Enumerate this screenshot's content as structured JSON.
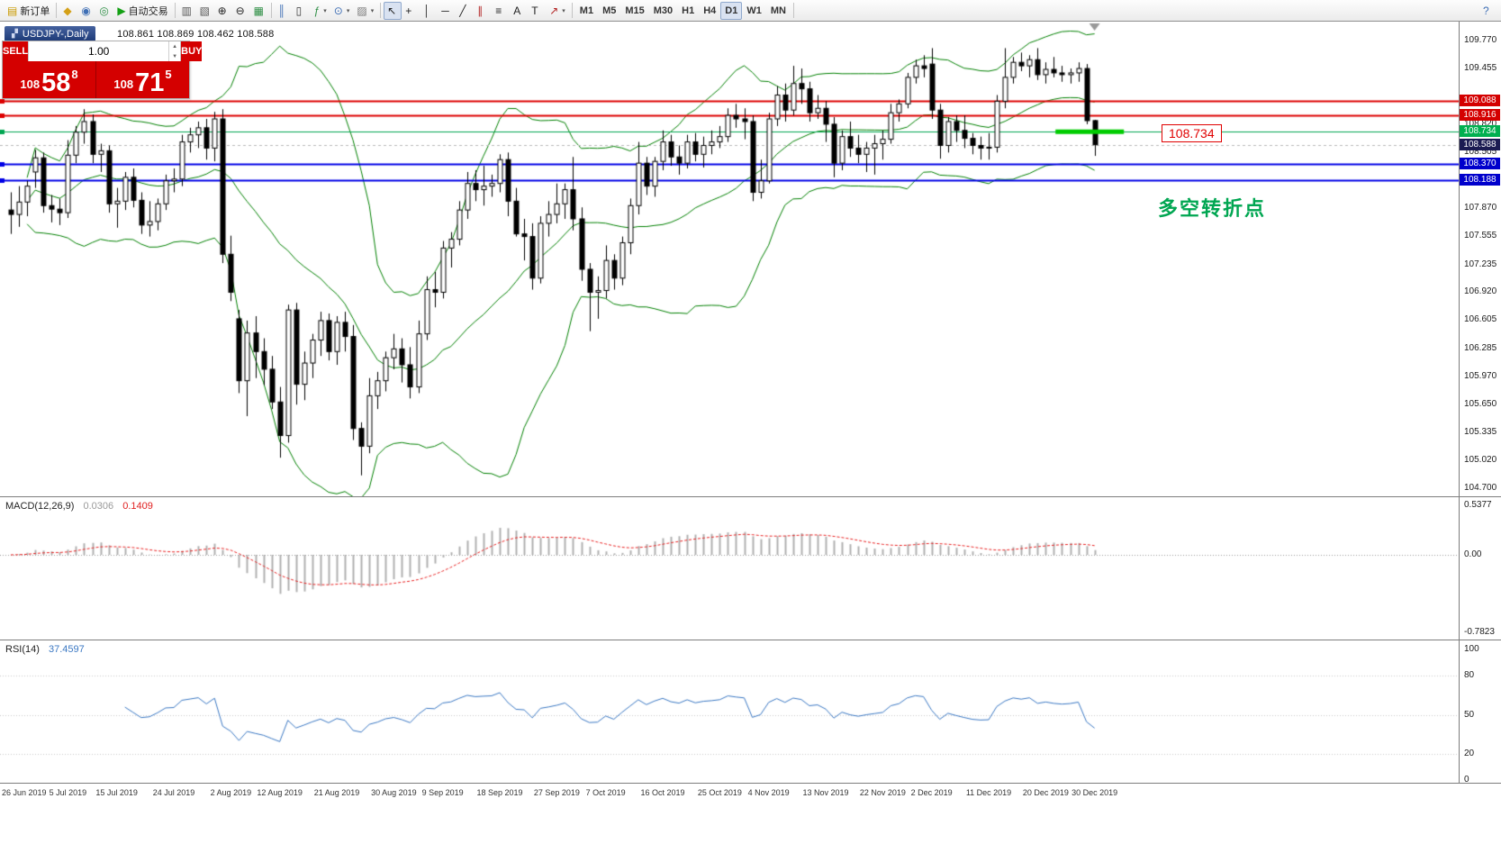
{
  "toolbar": {
    "groups": [
      {
        "items": [
          {
            "name": "new-order-button",
            "glyph": "▤",
            "glyph_color": "#c99a00",
            "label": "新订单"
          }
        ]
      },
      {
        "items": [
          {
            "name": "market-watch-button",
            "glyph": "◆",
            "glyph_color": "#d4a017"
          },
          {
            "name": "navigator-button",
            "glyph": "◉",
            "glyph_color": "#3f6fb5"
          },
          {
            "name": "terminal-button",
            "glyph": "◎",
            "glyph_color": "#2f8f46"
          },
          {
            "name": "autotrading-button",
            "glyph": "▶",
            "glyph_color": "#14a014",
            "label": "自动交易"
          }
        ]
      },
      {
        "items": [
          {
            "name": "bar-chart-zoom-button",
            "glyph": "▥",
            "glyph_color": "#555555"
          },
          {
            "name": "candle-chart-zoom-button",
            "glyph": "▧",
            "glyph_color": "#555555"
          },
          {
            "name": "zoom-in-button",
            "glyph": "⊕",
            "glyph_color": "#222222"
          },
          {
            "name": "zoom-out-button",
            "glyph": "⊖",
            "glyph_color": "#222222"
          },
          {
            "name": "tile-windows-button",
            "glyph": "▦",
            "glyph_color": "#2f8f46"
          }
        ]
      },
      {
        "items": [
          {
            "name": "chart-type-bars-button",
            "glyph": "║",
            "glyph_color": "#3f6fb5"
          },
          {
            "name": "chart-type-candles-button",
            "glyph": "▯",
            "glyph_color": "#333333"
          },
          {
            "name": "indicators-button",
            "glyph": "ƒ",
            "glyph_color": "#2f8f46",
            "dropdown": true
          },
          {
            "name": "periods-menu-button",
            "glyph": "⊙",
            "glyph_color": "#3f6fb5",
            "dropdown": true
          },
          {
            "name": "templates-button",
            "glyph": "▨",
            "glyph_color": "#777777",
            "dropdown": true
          }
        ]
      },
      {
        "items": [
          {
            "name": "cursor-button",
            "glyph": "↖",
            "glyph_color": "#222222",
            "active": true
          },
          {
            "name": "crosshair-button",
            "glyph": "+",
            "glyph_color": "#222222"
          },
          {
            "name": "vertical-line-button",
            "glyph": "│",
            "glyph_color": "#222222"
          },
          {
            "name": "horizontal-line-button",
            "glyph": "─",
            "glyph_color": "#222222"
          },
          {
            "name": "trendline-button",
            "glyph": "╱",
            "glyph_color": "#222222"
          },
          {
            "name": "channel-button",
            "glyph": "∥",
            "glyph_color": "#b22222"
          },
          {
            "name": "fibonacci-button",
            "glyph": "≡",
            "glyph_color": "#222222"
          },
          {
            "name": "text-button",
            "glyph": "A",
            "glyph_color": "#222222"
          },
          {
            "name": "text-label-button",
            "glyph": "T",
            "glyph_color": "#222222"
          },
          {
            "name": "arrow-objects-button",
            "glyph": "↗",
            "glyph_color": "#b22222",
            "dropdown": true
          }
        ]
      },
      {
        "items": [
          {
            "name": "timeframe-m1-button",
            "label": "M1",
            "tf": true
          },
          {
            "name": "timeframe-m5-button",
            "label": "M5",
            "tf": true
          },
          {
            "name": "timeframe-m15-button",
            "label": "M15",
            "tf": true
          },
          {
            "name": "timeframe-m30-button",
            "label": "M30",
            "tf": true
          },
          {
            "name": "timeframe-h1-button",
            "label": "H1",
            "tf": true
          },
          {
            "name": "timeframe-h4-button",
            "label": "H4",
            "tf": true
          },
          {
            "name": "timeframe-d1-button",
            "label": "D1",
            "tf": true,
            "active": true
          },
          {
            "name": "timeframe-w1-button",
            "label": "W1",
            "tf": true
          },
          {
            "name": "timeframe-mn-button",
            "label": "MN",
            "tf": true
          }
        ]
      },
      {
        "items": [
          {
            "name": "help-button",
            "glyph": "?",
            "glyph_color": "#3f6fb5",
            "right": true
          }
        ]
      }
    ]
  },
  "chart_header": {
    "symbol_period": "USDJPY-,Daily",
    "ohlc": "108.861 108.869 108.462 108.588"
  },
  "trade_panel": {
    "sell_label": "SELL",
    "buy_label": "BUY",
    "volume": "1.00",
    "sell_price": {
      "small": "108",
      "big": "58",
      "sup": "8"
    },
    "buy_price": {
      "small": "108",
      "big": "71",
      "sup": "5"
    }
  },
  "annotations": {
    "price_box": "108.734",
    "price_box_color": "#e00000",
    "turning_point": "多空转折点",
    "turning_point_color": "#00a651"
  },
  "price_axis": {
    "labels": [
      "109.770",
      "109.455",
      "108.820",
      "108.505",
      "107.870",
      "107.555",
      "107.235",
      "106.920",
      "106.605",
      "106.285",
      "105.970",
      "105.650",
      "105.335",
      "105.020",
      "104.700"
    ]
  },
  "indicators": {
    "macd": {
      "title": "MACD(12,26,9)",
      "value_main": "0.0306",
      "value_signal": "0.1409",
      "scale_top": "0.5377",
      "scale_zero": "0.00",
      "scale_bottom": "-0.7823",
      "params": {
        "fast": 12,
        "slow": 26,
        "signal": 9
      },
      "hist_color": "#b0b0b0",
      "signal_color": "#e82020"
    },
    "rsi": {
      "title": "RSI(14)",
      "value": "37.4597",
      "levels": [
        "100",
        "80",
        "50",
        "20",
        "0"
      ],
      "level_values": [
        100,
        80,
        50,
        20,
        0
      ],
      "color": "#3b78c3",
      "params": {
        "period": 14
      }
    }
  },
  "chart_data": {
    "type": "candlestick",
    "symbol": "USDJPY",
    "period": "Daily",
    "ylim": [
      104.62,
      109.98
    ],
    "bollinger": {
      "period": 20,
      "deviation": 2,
      "color": "#008000"
    },
    "x_labels": [
      {
        "i": 0,
        "t": "26 Jun 2019"
      },
      {
        "i": 7,
        "t": "5 Jul 2019"
      },
      {
        "i": 13,
        "t": "15 Jul 2019"
      },
      {
        "i": 20,
        "t": "24 Jul 2019"
      },
      {
        "i": 27,
        "t": "2 Aug 2019"
      },
      {
        "i": 33,
        "t": "12 Aug 2019"
      },
      {
        "i": 40,
        "t": "21 Aug 2019"
      },
      {
        "i": 47,
        "t": "30 Aug 2019"
      },
      {
        "i": 53,
        "t": "9 Sep 2019"
      },
      {
        "i": 60,
        "t": "18 Sep 2019"
      },
      {
        "i": 67,
        "t": "27 Sep 2019"
      },
      {
        "i": 73,
        "t": "7 Oct 2019"
      },
      {
        "i": 80,
        "t": "16 Oct 2019"
      },
      {
        "i": 87,
        "t": "25 Oct 2019"
      },
      {
        "i": 93,
        "t": "4 Nov 2019"
      },
      {
        "i": 100,
        "t": "13 Nov 2019"
      },
      {
        "i": 107,
        "t": "22 Nov 2019"
      },
      {
        "i": 113,
        "t": "2 Dec 2019"
      },
      {
        "i": 120,
        "t": "11 Dec 2019"
      },
      {
        "i": 127,
        "t": "20 Dec 2019"
      },
      {
        "i": 133,
        "t": "30 Dec 2019"
      }
    ],
    "h_lines": [
      {
        "price": 109.088,
        "label": "109.088",
        "color": "#dd0000",
        "width": 2,
        "badge_bg": "#d40000",
        "handle": true
      },
      {
        "price": 108.916,
        "label": "108.916",
        "color": "#dd0000",
        "width": 2,
        "badge_bg": "#d40000",
        "handle": true
      },
      {
        "price": 108.734,
        "label": "108.734",
        "color": "#00a651",
        "width": 1,
        "badge_bg": "#00b050",
        "handle": true
      },
      {
        "price": 108.588,
        "label": "108.588",
        "color": "#b9b9b9",
        "width": 1,
        "dash": true,
        "badge_bg": "#1b1b52",
        "handle": false
      },
      {
        "price": 108.37,
        "label": "108.370",
        "color": "#0000e6",
        "width": 2,
        "badge_bg": "#0000cc",
        "handle": true
      },
      {
        "price": 108.188,
        "label": "108.188",
        "color": "#0000e6",
        "width": 2,
        "badge_bg": "#0000cc",
        "handle": true
      }
    ],
    "segment": {
      "price": 108.734,
      "i1": 128.2,
      "i2": 136.6,
      "color": "#00cc00",
      "width": 5
    },
    "ohlc": [
      [
        107.85,
        108.05,
        107.58,
        107.8
      ],
      [
        107.8,
        108.12,
        107.66,
        107.94
      ],
      [
        107.94,
        108.18,
        107.78,
        108.12
      ],
      [
        108.28,
        108.53,
        108.1,
        108.44
      ],
      [
        108.44,
        108.5,
        107.82,
        107.9
      ],
      [
        107.9,
        108.02,
        107.71,
        107.86
      ],
      [
        107.86,
        107.98,
        107.68,
        107.82
      ],
      [
        107.82,
        108.64,
        107.76,
        108.47
      ],
      [
        108.47,
        108.8,
        108.38,
        108.73
      ],
      [
        108.73,
        108.99,
        108.6,
        108.85
      ],
      [
        108.85,
        108.93,
        108.38,
        108.48
      ],
      [
        108.48,
        108.6,
        108.28,
        108.52
      ],
      [
        108.52,
        108.58,
        107.82,
        107.92
      ],
      [
        107.92,
        108.1,
        107.65,
        107.95
      ],
      [
        107.95,
        108.28,
        107.85,
        108.22
      ],
      [
        108.22,
        108.32,
        107.88,
        107.96
      ],
      [
        107.96,
        108.05,
        107.58,
        107.68
      ],
      [
        107.68,
        107.95,
        107.55,
        107.72
      ],
      [
        107.72,
        107.98,
        107.62,
        107.92
      ],
      [
        107.92,
        108.25,
        107.85,
        108.18
      ],
      [
        108.18,
        108.32,
        108.05,
        108.2
      ],
      [
        108.2,
        108.7,
        108.12,
        108.62
      ],
      [
        108.62,
        108.78,
        108.5,
        108.7
      ],
      [
        108.7,
        108.85,
        108.55,
        108.78
      ],
      [
        108.78,
        108.88,
        108.42,
        108.55
      ],
      [
        108.55,
        108.96,
        108.4,
        108.88
      ],
      [
        108.88,
        108.99,
        107.25,
        107.35
      ],
      [
        107.35,
        107.56,
        106.82,
        106.92
      ],
      [
        106.62,
        106.72,
        105.78,
        105.92
      ],
      [
        105.92,
        106.6,
        105.52,
        106.46
      ],
      [
        106.46,
        106.65,
        105.95,
        106.25
      ],
      [
        106.25,
        106.4,
        105.87,
        106.05
      ],
      [
        106.05,
        106.2,
        105.6,
        105.68
      ],
      [
        105.68,
        105.85,
        105.05,
        105.3
      ],
      [
        105.3,
        106.78,
        105.22,
        106.72
      ],
      [
        106.72,
        106.8,
        105.65,
        105.88
      ],
      [
        105.88,
        106.25,
        105.7,
        106.12
      ],
      [
        106.12,
        106.45,
        105.95,
        106.38
      ],
      [
        106.38,
        106.7,
        106.2,
        106.6
      ],
      [
        106.6,
        106.68,
        106.15,
        106.25
      ],
      [
        106.25,
        106.65,
        106.1,
        106.58
      ],
      [
        106.58,
        106.7,
        106.25,
        106.42
      ],
      [
        106.42,
        106.55,
        105.25,
        105.38
      ],
      [
        105.38,
        105.45,
        104.85,
        105.18
      ],
      [
        105.18,
        105.95,
        105.1,
        105.75
      ],
      [
        105.75,
        106.02,
        105.6,
        105.92
      ],
      [
        105.92,
        106.25,
        105.8,
        106.18
      ],
      [
        106.18,
        106.45,
        106.05,
        106.28
      ],
      [
        106.28,
        106.4,
        105.9,
        106.1
      ],
      [
        106.1,
        106.3,
        105.72,
        105.85
      ],
      [
        105.85,
        106.6,
        105.78,
        106.45
      ],
      [
        106.45,
        107.1,
        106.38,
        106.95
      ],
      [
        106.95,
        107.15,
        106.75,
        106.92
      ],
      [
        106.92,
        107.5,
        106.85,
        107.42
      ],
      [
        107.42,
        107.6,
        107.2,
        107.52
      ],
      [
        107.52,
        107.95,
        107.45,
        107.85
      ],
      [
        107.85,
        108.28,
        107.75,
        108.15
      ],
      [
        108.15,
        108.3,
        107.95,
        108.08
      ],
      [
        108.08,
        108.35,
        107.9,
        108.12
      ],
      [
        108.12,
        108.25,
        108.0,
        108.15
      ],
      [
        108.15,
        108.48,
        108.05,
        108.42
      ],
      [
        108.42,
        108.5,
        107.78,
        107.95
      ],
      [
        107.95,
        108.1,
        107.55,
        107.58
      ],
      [
        107.58,
        107.75,
        107.28,
        107.55
      ],
      [
        107.55,
        107.7,
        106.95,
        107.08
      ],
      [
        107.08,
        107.78,
        107.02,
        107.7
      ],
      [
        107.7,
        107.95,
        107.55,
        107.8
      ],
      [
        107.8,
        108.15,
        107.7,
        107.92
      ],
      [
        107.92,
        108.15,
        107.75,
        108.08
      ],
      [
        108.08,
        108.45,
        107.62,
        107.75
      ],
      [
        107.75,
        107.88,
        107.05,
        107.18
      ],
      [
        107.18,
        107.25,
        106.48,
        106.92
      ],
      [
        106.92,
        107.1,
        106.62,
        106.94
      ],
      [
        106.94,
        107.45,
        106.85,
        107.28
      ],
      [
        107.28,
        107.35,
        106.95,
        107.08
      ],
      [
        107.08,
        107.55,
        107.0,
        107.48
      ],
      [
        107.48,
        107.98,
        107.35,
        107.9
      ],
      [
        107.9,
        108.62,
        107.8,
        108.38
      ],
      [
        108.38,
        108.45,
        108.02,
        108.12
      ],
      [
        108.12,
        108.45,
        108.0,
        108.4
      ],
      [
        108.4,
        108.75,
        108.3,
        108.62
      ],
      [
        108.62,
        108.7,
        108.35,
        108.45
      ],
      [
        108.45,
        108.58,
        108.25,
        108.38
      ],
      [
        108.38,
        108.7,
        108.32,
        108.62
      ],
      [
        108.62,
        108.72,
        108.4,
        108.48
      ],
      [
        108.48,
        108.68,
        108.33,
        108.58
      ],
      [
        108.58,
        108.75,
        108.48,
        108.62
      ],
      [
        108.62,
        108.8,
        108.55,
        108.68
      ],
      [
        108.68,
        109.0,
        108.62,
        108.92
      ],
      [
        108.92,
        109.05,
        108.78,
        108.88
      ],
      [
        108.88,
        109.0,
        108.65,
        108.85
      ],
      [
        108.85,
        108.92,
        107.95,
        108.05
      ],
      [
        108.05,
        108.42,
        107.98,
        108.18
      ],
      [
        108.18,
        108.95,
        108.15,
        108.88
      ],
      [
        108.88,
        109.25,
        108.8,
        109.15
      ],
      [
        109.15,
        109.28,
        108.85,
        108.98
      ],
      [
        108.98,
        109.48,
        108.92,
        109.28
      ],
      [
        109.28,
        109.45,
        109.05,
        109.22
      ],
      [
        109.22,
        109.3,
        108.85,
        108.95
      ],
      [
        108.95,
        109.15,
        108.88,
        109.0
      ],
      [
        109.0,
        109.08,
        108.62,
        108.82
      ],
      [
        108.82,
        108.9,
        108.22,
        108.38
      ],
      [
        108.38,
        108.75,
        108.3,
        108.68
      ],
      [
        108.68,
        108.85,
        108.45,
        108.55
      ],
      [
        108.55,
        108.7,
        108.38,
        108.48
      ],
      [
        108.48,
        108.62,
        108.28,
        108.55
      ],
      [
        108.55,
        108.7,
        108.25,
        108.6
      ],
      [
        108.6,
        108.75,
        108.42,
        108.65
      ],
      [
        108.65,
        109.05,
        108.6,
        108.95
      ],
      [
        108.95,
        109.1,
        108.85,
        109.05
      ],
      [
        109.05,
        109.4,
        109.0,
        109.35
      ],
      [
        109.35,
        109.55,
        109.28,
        109.48
      ],
      [
        109.48,
        109.6,
        109.35,
        109.45
      ],
      [
        109.5,
        109.68,
        108.88,
        108.98
      ],
      [
        108.98,
        109.05,
        108.43,
        108.58
      ],
      [
        108.58,
        108.9,
        108.5,
        108.85
      ],
      [
        108.85,
        108.92,
        108.62,
        108.75
      ],
      [
        108.75,
        108.92,
        108.55,
        108.66
      ],
      [
        108.66,
        108.72,
        108.48,
        108.58
      ],
      [
        108.58,
        108.68,
        108.42,
        108.55
      ],
      [
        108.55,
        108.72,
        108.42,
        108.56
      ],
      [
        108.56,
        109.15,
        108.5,
        109.08
      ],
      [
        109.08,
        109.68,
        109.0,
        109.35
      ],
      [
        109.35,
        109.58,
        109.28,
        109.52
      ],
      [
        109.52,
        109.63,
        109.42,
        109.48
      ],
      [
        109.48,
        109.6,
        109.35,
        109.55
      ],
      [
        109.55,
        109.68,
        109.32,
        109.38
      ],
      [
        109.38,
        109.52,
        109.28,
        109.44
      ],
      [
        109.44,
        109.58,
        109.35,
        109.4
      ],
      [
        109.4,
        109.48,
        109.3,
        109.38
      ],
      [
        109.38,
        109.45,
        109.28,
        109.4
      ],
      [
        109.4,
        109.52,
        109.3,
        109.45
      ],
      [
        109.45,
        109.5,
        108.82,
        108.86
      ],
      [
        108.861,
        108.869,
        108.462,
        108.588
      ]
    ]
  }
}
